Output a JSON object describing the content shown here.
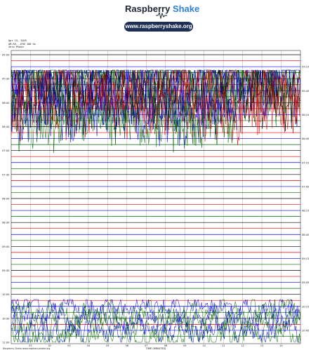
{
  "header": {
    "brand": "Raspberry",
    "brand_accent": "Shake",
    "url": "www.raspberryshake.org"
  },
  "meta": {
    "date": "Apr 15, 2025",
    "station": "AM.R5...EHZ 100 Hz",
    "filter": "Zero Phase"
  },
  "chart_data": {
    "type": "line",
    "description_free": true,
    "xlabel": "TIME (MINUTES)",
    "x_ticks": [
      "01",
      "02",
      "03",
      "04",
      "05",
      "06",
      "07",
      "08",
      "09",
      "10",
      "11",
      "12",
      "13",
      "14"
    ],
    "xlim": [
      0,
      15
    ],
    "row_labels_left": [
      "05:00",
      "05:30",
      "06:00",
      "06:30",
      "07:00",
      "07:30",
      "08:00",
      "08:30",
      "09:00",
      "09:30",
      "10:00",
      "10:30",
      "11:00"
    ],
    "row_labels_right": [
      "05:15",
      "05:45",
      "06:15",
      "06:45",
      "07:15",
      "07:45",
      "08:15",
      "08:45",
      "09:15",
      "09:45",
      "10:15",
      "10:45"
    ],
    "trace_colors": [
      "#000000",
      "#e00000",
      "#0000e0",
      "#006600"
    ],
    "rows_total": 48,
    "noisy_rows_start": 2,
    "noisy_rows_end": 11,
    "quiet_noisy_rows_start": 42,
    "quiet_noisy_rows_end": 47,
    "footer_left": "Raspberry Shake  www.raspberryshake.org",
    "footer_right": "TIME (MINUTES)"
  },
  "colors": {
    "accent": "#2f7fd8",
    "pill": "#1d2f55",
    "grid": "#555555"
  }
}
